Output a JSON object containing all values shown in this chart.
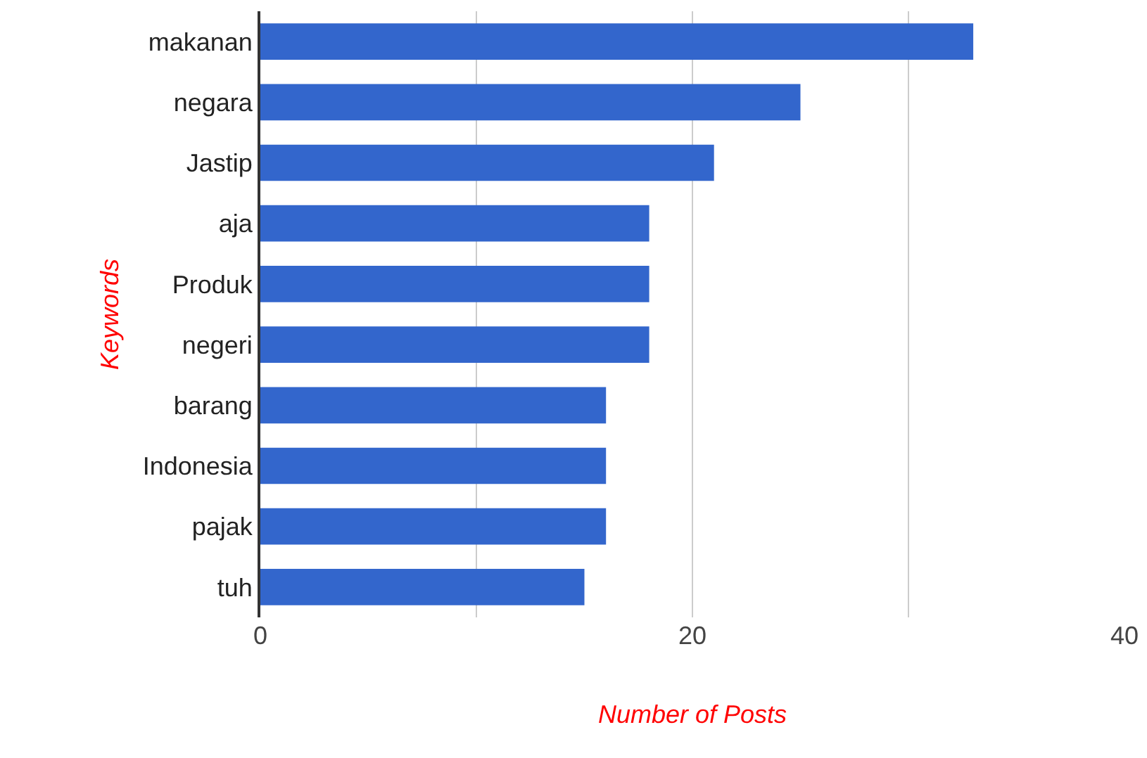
{
  "chart_data": {
    "type": "bar",
    "orientation": "horizontal",
    "xlabel": "Number of Posts",
    "ylabel": "Keywords",
    "categories": [
      "makanan",
      "negara",
      "Jastip",
      "aja",
      "Produk",
      "negeri",
      "barang",
      "Indonesia",
      "pajak",
      "tuh"
    ],
    "values": [
      33,
      25,
      21,
      18,
      18,
      18,
      16,
      16,
      16,
      15
    ],
    "color": "#3366cc",
    "xlim": [
      0,
      40
    ],
    "xticks": [
      0,
      {
        "value": 10,
        "label": null
      },
      20,
      {
        "value": 30,
        "label": null
      },
      40
    ],
    "grid": "x"
  }
}
